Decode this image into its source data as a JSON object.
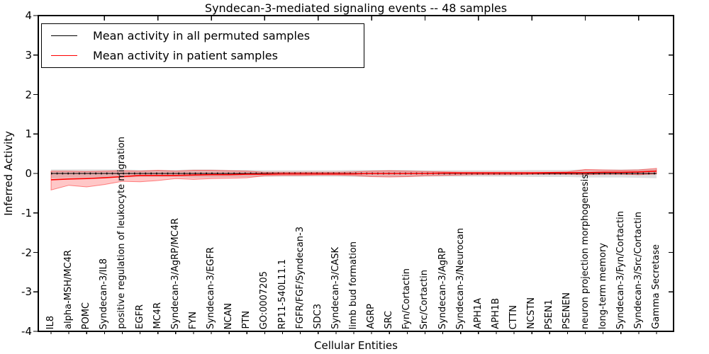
{
  "window": {
    "kind": "matplotlib-figure",
    "background": "#ffffff"
  },
  "legend": {
    "items": [
      {
        "label": "Mean activity in all permuted samples",
        "color": "#000000"
      },
      {
        "label": "Mean activity in patient samples",
        "color": "#ff0000"
      }
    ]
  },
  "chart_data": {
    "type": "line",
    "title": "Syndecan-3-mediated signaling events -- 48 samples",
    "xlabel": "Cellular Entities",
    "ylabel": "Inferred Activity",
    "ylim": [
      -4,
      4
    ],
    "yticks": [
      4,
      3,
      2,
      1,
      0,
      -1,
      -2,
      -3,
      -4
    ],
    "grid": false,
    "legend_position": "upper left",
    "categories": [
      "IL8",
      "alpha-MSH/MC4R",
      "POMC",
      "Syndecan-3/IL8",
      "positive regulation of leukocyte migration",
      "EGFR",
      "MC4R",
      "Syndecan-3/AgRP/MC4R",
      "FYN",
      "Syndecan-3/EGFR",
      "NCAN",
      "PTN",
      "GO:0007205",
      "RP11-540L11.1",
      "FGFR/FGF/Syndecan-3",
      "SDC3",
      "Syndecan-3/CASK",
      "limb bud formation",
      "AGRP",
      "SRC",
      "Fyn/Cortactin",
      "Src/Cortactin",
      "Syndecan-3/AgRP",
      "Syndecan-3/Neurocan",
      "APH1A",
      "APH1B",
      "CTTN",
      "NCSTN",
      "PSEN1",
      "PSENEN",
      "neuron projection morphogenesis",
      "long-term memory",
      "Syndecan-3/Fyn/Cortactin",
      "Syndecan-3/Src/Cortactin",
      "Gamma Secretase"
    ],
    "series": [
      {
        "name": "Mean activity in all permuted samples",
        "color": "#000000",
        "line_style": "solid-with-dots",
        "values": [
          0,
          0,
          0,
          0,
          0,
          0,
          0,
          0,
          0,
          0,
          0,
          0,
          0,
          0,
          0,
          0,
          0,
          0,
          0,
          0,
          0,
          0,
          0,
          0,
          0,
          0,
          0,
          0,
          0,
          0,
          0,
          0,
          0,
          0,
          0
        ],
        "band": {
          "fill": "rgba(0,0,0,0.13)",
          "upper": [
            0.1,
            0.1,
            0.1,
            0.1,
            0.1,
            0.09,
            0.09,
            0.09,
            0.1,
            0.1,
            0.09,
            0.09,
            0.08,
            0.08,
            0.08,
            0.08,
            0.08,
            0.09,
            0.09,
            0.09,
            0.09,
            0.08,
            0.08,
            0.08,
            0.08,
            0.08,
            0.08,
            0.09,
            0.09,
            0.09,
            0.1,
            0.1,
            0.1,
            0.11,
            0.12
          ],
          "lower": [
            -0.12,
            -0.11,
            -0.1,
            -0.1,
            -0.1,
            -0.09,
            -0.09,
            -0.09,
            -0.1,
            -0.1,
            -0.09,
            -0.09,
            -0.08,
            -0.08,
            -0.08,
            -0.08,
            -0.08,
            -0.09,
            -0.09,
            -0.09,
            -0.09,
            -0.08,
            -0.08,
            -0.08,
            -0.08,
            -0.08,
            -0.08,
            -0.09,
            -0.09,
            -0.09,
            -0.1,
            -0.1,
            -0.1,
            -0.11,
            -0.12
          ]
        }
      },
      {
        "name": "Mean activity in patient samples",
        "color": "#ff0000",
        "line_style": "solid",
        "values": [
          -0.16,
          -0.14,
          -0.13,
          -0.11,
          -0.08,
          -0.05,
          -0.05,
          -0.05,
          -0.04,
          -0.03,
          -0.03,
          -0.02,
          -0.02,
          -0.01,
          -0.01,
          -0.01,
          -0.01,
          -0.01,
          0,
          0,
          0,
          0,
          0.01,
          0.01,
          0.01,
          0.01,
          0.01,
          0.01,
          0.02,
          0.02,
          0.02,
          0.03,
          0.03,
          0.04,
          0.06
        ],
        "band": {
          "fill": "rgba(255,0,0,0.22)",
          "edge": "rgba(255,0,0,0.45)",
          "upper": [
            0.06,
            0.06,
            0.05,
            0.06,
            0.07,
            0.06,
            0.08,
            0.06,
            0.08,
            0.08,
            0.07,
            0.06,
            0.03,
            0.03,
            0.03,
            0.03,
            0.03,
            0.04,
            0.06,
            0.07,
            0.06,
            0.05,
            0.04,
            0.03,
            0.03,
            0.03,
            0.03,
            0.03,
            0.03,
            0.04,
            0.1,
            0.09,
            0.08,
            0.09,
            0.13
          ],
          "lower": [
            -0.42,
            -0.3,
            -0.34,
            -0.28,
            -0.2,
            -0.21,
            -0.18,
            -0.13,
            -0.15,
            -0.13,
            -0.12,
            -0.11,
            -0.06,
            -0.05,
            -0.05,
            -0.04,
            -0.04,
            -0.05,
            -0.08,
            -0.09,
            -0.08,
            -0.06,
            -0.05,
            -0.04,
            -0.03,
            -0.03,
            -0.03,
            -0.02,
            -0.02,
            -0.02,
            -0.03,
            -0.02,
            -0.02,
            -0.03,
            -0.01
          ]
        }
      }
    ]
  }
}
